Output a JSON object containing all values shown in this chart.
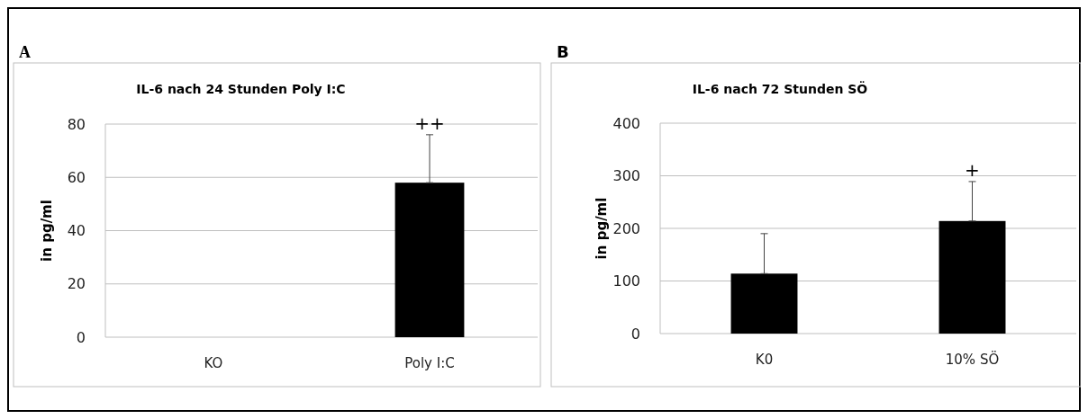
{
  "chart_data": [
    {
      "type": "bar",
      "title": "IL-6 nach 24 Stunden Poly I:C",
      "ylabel": "in pg/ml",
      "categories": [
        "KO",
        "Poly I:C"
      ],
      "values": [
        0,
        58
      ],
      "errors": [
        null,
        [
          58,
          76
        ]
      ],
      "color": "#000000",
      "ylim": [
        0,
        80
      ],
      "yticks": [
        0,
        20,
        40,
        60,
        80
      ],
      "grid": "y",
      "annotations": [
        "A",
        "++"
      ]
    },
    {
      "type": "bar",
      "title": "IL-6 nach 72 Stunden SÖ",
      "ylabel": "in pg/ml",
      "categories": [
        "K0",
        "10% SÖ"
      ],
      "values": [
        114,
        214
      ],
      "errors": [
        [
          114,
          190
        ],
        [
          214,
          289
        ]
      ],
      "color": "#000000",
      "ylim": [
        0,
        400
      ],
      "yticks": [
        0,
        100,
        200,
        300,
        400
      ],
      "grid": "y",
      "annotations": [
        "B",
        "+"
      ]
    }
  ]
}
